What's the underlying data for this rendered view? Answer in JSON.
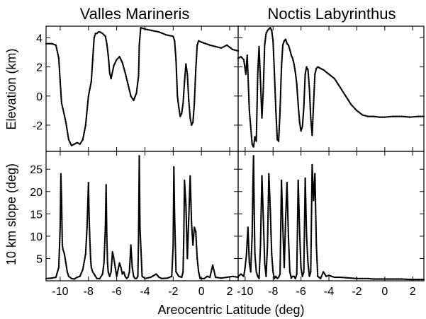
{
  "chart_data": [
    {
      "type": "scatter",
      "title": "Valles Marineris",
      "xlabel": "",
      "ylabel": "Elevation (km)",
      "xlim": [
        -11,
        2.6
      ],
      "ylim": [
        -3.8,
        4.8
      ],
      "yticks": [
        -2,
        0,
        2,
        4
      ],
      "grid": false,
      "series": [
        {
          "name": "",
          "x": [
            -11.0,
            -10.6,
            -10.3,
            -10.1,
            -10.0,
            -9.9,
            -9.8,
            -9.6,
            -9.4,
            -9.2,
            -9.0,
            -8.8,
            -8.6,
            -8.4,
            -8.2,
            -8.0,
            -7.9,
            -7.8,
            -7.7,
            -7.6,
            -7.5,
            -7.4,
            -7.3,
            -7.2,
            -7.0,
            -6.8,
            -6.7,
            -6.6,
            -6.5,
            -6.4,
            -6.2,
            -6.0,
            -5.8,
            -5.6,
            -5.4,
            -5.2,
            -5.0,
            -4.8,
            -4.6,
            -4.45,
            -4.4,
            -4.3,
            -4.0,
            -3.5,
            -3.0,
            -2.5,
            -2.0,
            -1.9,
            -1.8,
            -1.7,
            -1.6,
            -1.5,
            -1.4,
            -1.3,
            -1.2,
            -1.1,
            -1.0,
            -0.9,
            -0.8,
            -0.7,
            -0.6,
            -0.5,
            -0.4,
            -0.3,
            -0.2,
            0.0,
            0.3,
            0.6,
            1.0,
            1.4,
            1.8,
            2.2,
            2.6
          ],
          "y": [
            3.6,
            3.6,
            3.5,
            2.6,
            1.0,
            -0.5,
            -0.9,
            -1.8,
            -3.0,
            -3.4,
            -3.3,
            -3.2,
            -3.3,
            -3.0,
            -2.0,
            0.0,
            0.5,
            1.0,
            2.5,
            4.0,
            4.3,
            4.3,
            4.4,
            4.4,
            4.3,
            4.1,
            3.6,
            2.8,
            1.6,
            1.2,
            2.1,
            2.5,
            2.7,
            2.3,
            1.6,
            0.8,
            0.0,
            -0.3,
            0.2,
            1.4,
            3.5,
            4.7,
            4.6,
            4.5,
            4.4,
            4.2,
            4.1,
            3.8,
            2.5,
            0.0,
            -0.8,
            -1.4,
            -1.2,
            -0.5,
            1.0,
            2.2,
            1.5,
            -0.3,
            -1.5,
            -2.0,
            -1.8,
            -0.5,
            1.8,
            3.5,
            3.8,
            3.7,
            3.6,
            3.5,
            3.4,
            3.3,
            3.5,
            3.2,
            3.1
          ]
        }
      ]
    },
    {
      "type": "scatter",
      "title": "Noctis Labyrinthus",
      "xlabel": "",
      "ylabel": "",
      "xlim": [
        -10.5,
        2.8
      ],
      "ylim": [
        -3.8,
        4.8
      ],
      "yticks": [
        -2,
        0,
        2,
        4
      ],
      "grid": false,
      "series": [
        {
          "name": "",
          "x": [
            -10.5,
            -10.3,
            -10.1,
            -9.95,
            -9.85,
            -9.7,
            -9.5,
            -9.4,
            -9.3,
            -9.2,
            -9.1,
            -9.0,
            -8.9,
            -8.8,
            -8.7,
            -8.6,
            -8.5,
            -8.4,
            -8.3,
            -8.2,
            -8.1,
            -8.0,
            -7.9,
            -7.8,
            -7.7,
            -7.6,
            -7.5,
            -7.4,
            -7.3,
            -7.2,
            -7.1,
            -7.0,
            -6.9,
            -6.8,
            -6.7,
            -6.6,
            -6.5,
            -6.4,
            -6.3,
            -6.2,
            -6.1,
            -6.0,
            -5.9,
            -5.8,
            -5.7,
            -5.6,
            -5.5,
            -5.4,
            -5.3,
            -5.2,
            -5.1,
            -5.0,
            -4.9,
            -4.8,
            -4.6,
            -4.4,
            -4.0,
            -3.6,
            -3.2,
            -2.8,
            -2.4,
            -2.0,
            -1.6,
            -1.2,
            -0.8,
            -0.4,
            0.0,
            0.6,
            1.2,
            1.8,
            2.4,
            2.8
          ],
          "y": [
            2.6,
            2.7,
            2.5,
            1.5,
            2.8,
            -1.0,
            -3.3,
            -3.5,
            -2.8,
            -3.1,
            1.5,
            3.4,
            1.0,
            -1.5,
            0.5,
            3.5,
            4.3,
            4.5,
            4.6,
            4.7,
            4.5,
            3.8,
            1.5,
            -1.0,
            -3.0,
            -3.1,
            -1.0,
            2.0,
            3.5,
            3.8,
            3.9,
            3.6,
            3.5,
            3.2,
            2.8,
            2.6,
            2.2,
            1.6,
            0.8,
            -0.6,
            -1.8,
            -2.4,
            -2.1,
            -0.8,
            1.5,
            2.0,
            1.8,
            0.5,
            -1.5,
            -2.7,
            -0.5,
            1.5,
            1.9,
            2.0,
            1.9,
            1.8,
            1.5,
            1.2,
            0.6,
            0.0,
            -0.6,
            -1.0,
            -1.3,
            -1.4,
            -1.4,
            -1.45,
            -1.45,
            -1.4,
            -1.4,
            -1.45,
            -1.4,
            -1.4
          ]
        }
      ]
    },
    {
      "type": "scatter",
      "title": "",
      "xlabel": "",
      "ylabel": "10 km slope (deg)",
      "xlim": [
        -11,
        2.6
      ],
      "ylim": [
        0,
        29
      ],
      "yticks": [
        5,
        10,
        15,
        20,
        25
      ],
      "xticks": [
        -10,
        -8,
        -6,
        -4,
        -2,
        0,
        2
      ],
      "grid": false,
      "series": [
        {
          "name": "",
          "x": [
            -11.0,
            -10.6,
            -10.3,
            -10.1,
            -10.0,
            -9.95,
            -9.9,
            -9.85,
            -9.8,
            -9.7,
            -9.6,
            -9.5,
            -9.4,
            -9.2,
            -9.0,
            -8.8,
            -8.6,
            -8.4,
            -8.2,
            -8.1,
            -8.0,
            -7.95,
            -7.9,
            -7.85,
            -7.8,
            -7.7,
            -7.6,
            -7.5,
            -7.4,
            -7.2,
            -7.0,
            -6.9,
            -6.8,
            -6.75,
            -6.7,
            -6.65,
            -6.6,
            -6.5,
            -6.4,
            -6.3,
            -6.2,
            -6.1,
            -6.0,
            -5.9,
            -5.8,
            -5.7,
            -5.6,
            -5.5,
            -5.4,
            -5.3,
            -5.2,
            -5.1,
            -5.0,
            -4.9,
            -4.8,
            -4.7,
            -4.6,
            -4.5,
            -4.45,
            -4.4,
            -4.35,
            -4.2,
            -4.0,
            -3.6,
            -3.2,
            -3.0,
            -2.8,
            -2.4,
            -2.1,
            -2.0,
            -1.95,
            -1.9,
            -1.8,
            -1.6,
            -1.4,
            -1.3,
            -1.25,
            -1.2,
            -1.1,
            -1.0,
            -0.9,
            -0.8,
            -0.7,
            -0.6,
            -0.5,
            -0.4,
            -0.3,
            -0.2,
            -0.1,
            0.0,
            0.2,
            0.4,
            0.6,
            0.8,
            1.0,
            1.4,
            1.8,
            2.2,
            2.6
          ],
          "y": [
            0.5,
            0.6,
            0.8,
            3.0,
            12.0,
            24.0,
            18.0,
            8.0,
            7.0,
            6.0,
            4.0,
            2.0,
            1.0,
            0.5,
            0.4,
            0.8,
            1.0,
            2.5,
            6.0,
            12.0,
            22.0,
            14.0,
            9.0,
            5.0,
            3.0,
            2.0,
            1.5,
            1.0,
            0.5,
            0.5,
            1.5,
            4.0,
            12.0,
            21.5,
            10.0,
            4.0,
            2.0,
            1.0,
            2.0,
            6.5,
            5.0,
            3.0,
            1.0,
            2.5,
            4.0,
            3.0,
            1.5,
            2.0,
            1.0,
            0.5,
            0.8,
            2.0,
            8.0,
            3.0,
            1.0,
            0.5,
            0.5,
            1.0,
            10.0,
            28.0,
            12.0,
            1.0,
            0.5,
            0.8,
            1.5,
            0.8,
            0.5,
            0.6,
            1.0,
            8.0,
            25.5,
            15.0,
            2.0,
            1.0,
            0.8,
            2.0,
            10.0,
            22.5,
            17.0,
            5.0,
            14.0,
            23.5,
            13.0,
            8.0,
            12.0,
            11.0,
            5.0,
            2.0,
            0.6,
            0.5,
            0.5,
            1.0,
            0.8,
            3.5,
            0.8,
            0.6,
            0.8,
            1.0,
            0.8
          ]
        }
      ]
    },
    {
      "type": "scatter",
      "title": "",
      "xlabel": "",
      "ylabel": "",
      "xlim": [
        -10.5,
        2.8
      ],
      "ylim": [
        0,
        29
      ],
      "yticks": [
        5,
        10,
        15,
        20,
        25
      ],
      "xticks": [
        -10,
        -8,
        -6,
        -4,
        -2,
        0,
        2
      ],
      "grid": false,
      "series": [
        {
          "name": "",
          "x": [
            -10.5,
            -10.3,
            -10.1,
            -10.0,
            -9.9,
            -9.8,
            -9.7,
            -9.6,
            -9.5,
            -9.45,
            -9.4,
            -9.35,
            -9.3,
            -9.2,
            -9.1,
            -9.0,
            -8.9,
            -8.8,
            -8.7,
            -8.6,
            -8.5,
            -8.4,
            -8.3,
            -8.2,
            -8.1,
            -8.0,
            -7.9,
            -7.8,
            -7.7,
            -7.6,
            -7.5,
            -7.4,
            -7.3,
            -7.2,
            -7.1,
            -7.0,
            -6.9,
            -6.8,
            -6.7,
            -6.6,
            -6.5,
            -6.4,
            -6.3,
            -6.2,
            -6.1,
            -6.0,
            -5.9,
            -5.8,
            -5.7,
            -5.6,
            -5.5,
            -5.4,
            -5.3,
            -5.2,
            -5.1,
            -5.0,
            -4.9,
            -4.8,
            -4.6,
            -4.4,
            -4.2,
            -4.0,
            -3.6,
            -3.2,
            -2.8,
            -2.4,
            -2.0,
            -1.6,
            -1.2,
            -0.8,
            -0.4,
            0.0,
            0.6,
            1.2,
            1.8,
            2.4,
            2.8
          ],
          "y": [
            1.0,
            1.5,
            1.0,
            3.0,
            6.0,
            12.0,
            4.0,
            2.0,
            10.0,
            20.0,
            28.0,
            15.0,
            6.0,
            2.0,
            1.0,
            0.5,
            8.0,
            23.5,
            14.0,
            4.0,
            1.0,
            8.0,
            24.0,
            16.0,
            6.0,
            2.0,
            0.5,
            1.0,
            0.5,
            0.8,
            1.5,
            22.5,
            12.0,
            3.0,
            14.0,
            22.0,
            10.0,
            2.0,
            0.6,
            1.0,
            1.0,
            0.5,
            1.5,
            22.5,
            11.0,
            3.0,
            1.0,
            2.0,
            23.0,
            10.0,
            4.0,
            1.0,
            2.0,
            26.0,
            18.0,
            24.0,
            8.0,
            1.0,
            0.5,
            2.0,
            1.0,
            1.2,
            0.8,
            0.8,
            0.7,
            0.6,
            0.5,
            0.5,
            0.5,
            0.4,
            0.4,
            0.4,
            0.4,
            0.4,
            0.3,
            0.3,
            0.3
          ]
        }
      ]
    }
  ],
  "titles": {
    "left": "Valles Marineris",
    "right": "Noctis Labyrinthus"
  },
  "axis_labels": {
    "x": "Areocentric Latitude (deg)",
    "y_top": "Elevation (km)",
    "y_bottom": "10 km slope (deg)"
  }
}
